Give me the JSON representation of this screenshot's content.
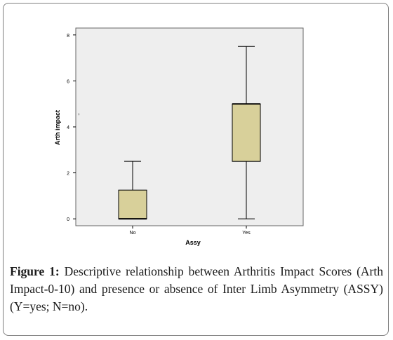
{
  "caption": {
    "label": "Figure 1:",
    "text": " Descriptive relationship between Arthritis Impact Scores (Arth Impact-0-10) and presence or absence of Inter Limb Asymmetry (ASSY) (Y=yes; N=no)."
  },
  "chart_data": {
    "type": "boxplot",
    "xlabel": "Assy",
    "ylabel": "Arth impact",
    "categories": [
      "No",
      "Yes"
    ],
    "ylim": [
      -0.3,
      8.3
    ],
    "yticks": [
      0,
      2,
      4,
      6,
      8
    ],
    "grid": false,
    "boxes": [
      {
        "category": "No",
        "min": 0,
        "q1": 0,
        "median": 0,
        "q3": 1.25,
        "max": 2.5
      },
      {
        "category": "Yes",
        "min": 0,
        "q1": 2.5,
        "median": 5,
        "q3": 5,
        "max": 7.5
      }
    ],
    "colors": {
      "plot_background": "#eeeeee",
      "box_fill": "#d8d09a",
      "line": "#000000"
    }
  }
}
